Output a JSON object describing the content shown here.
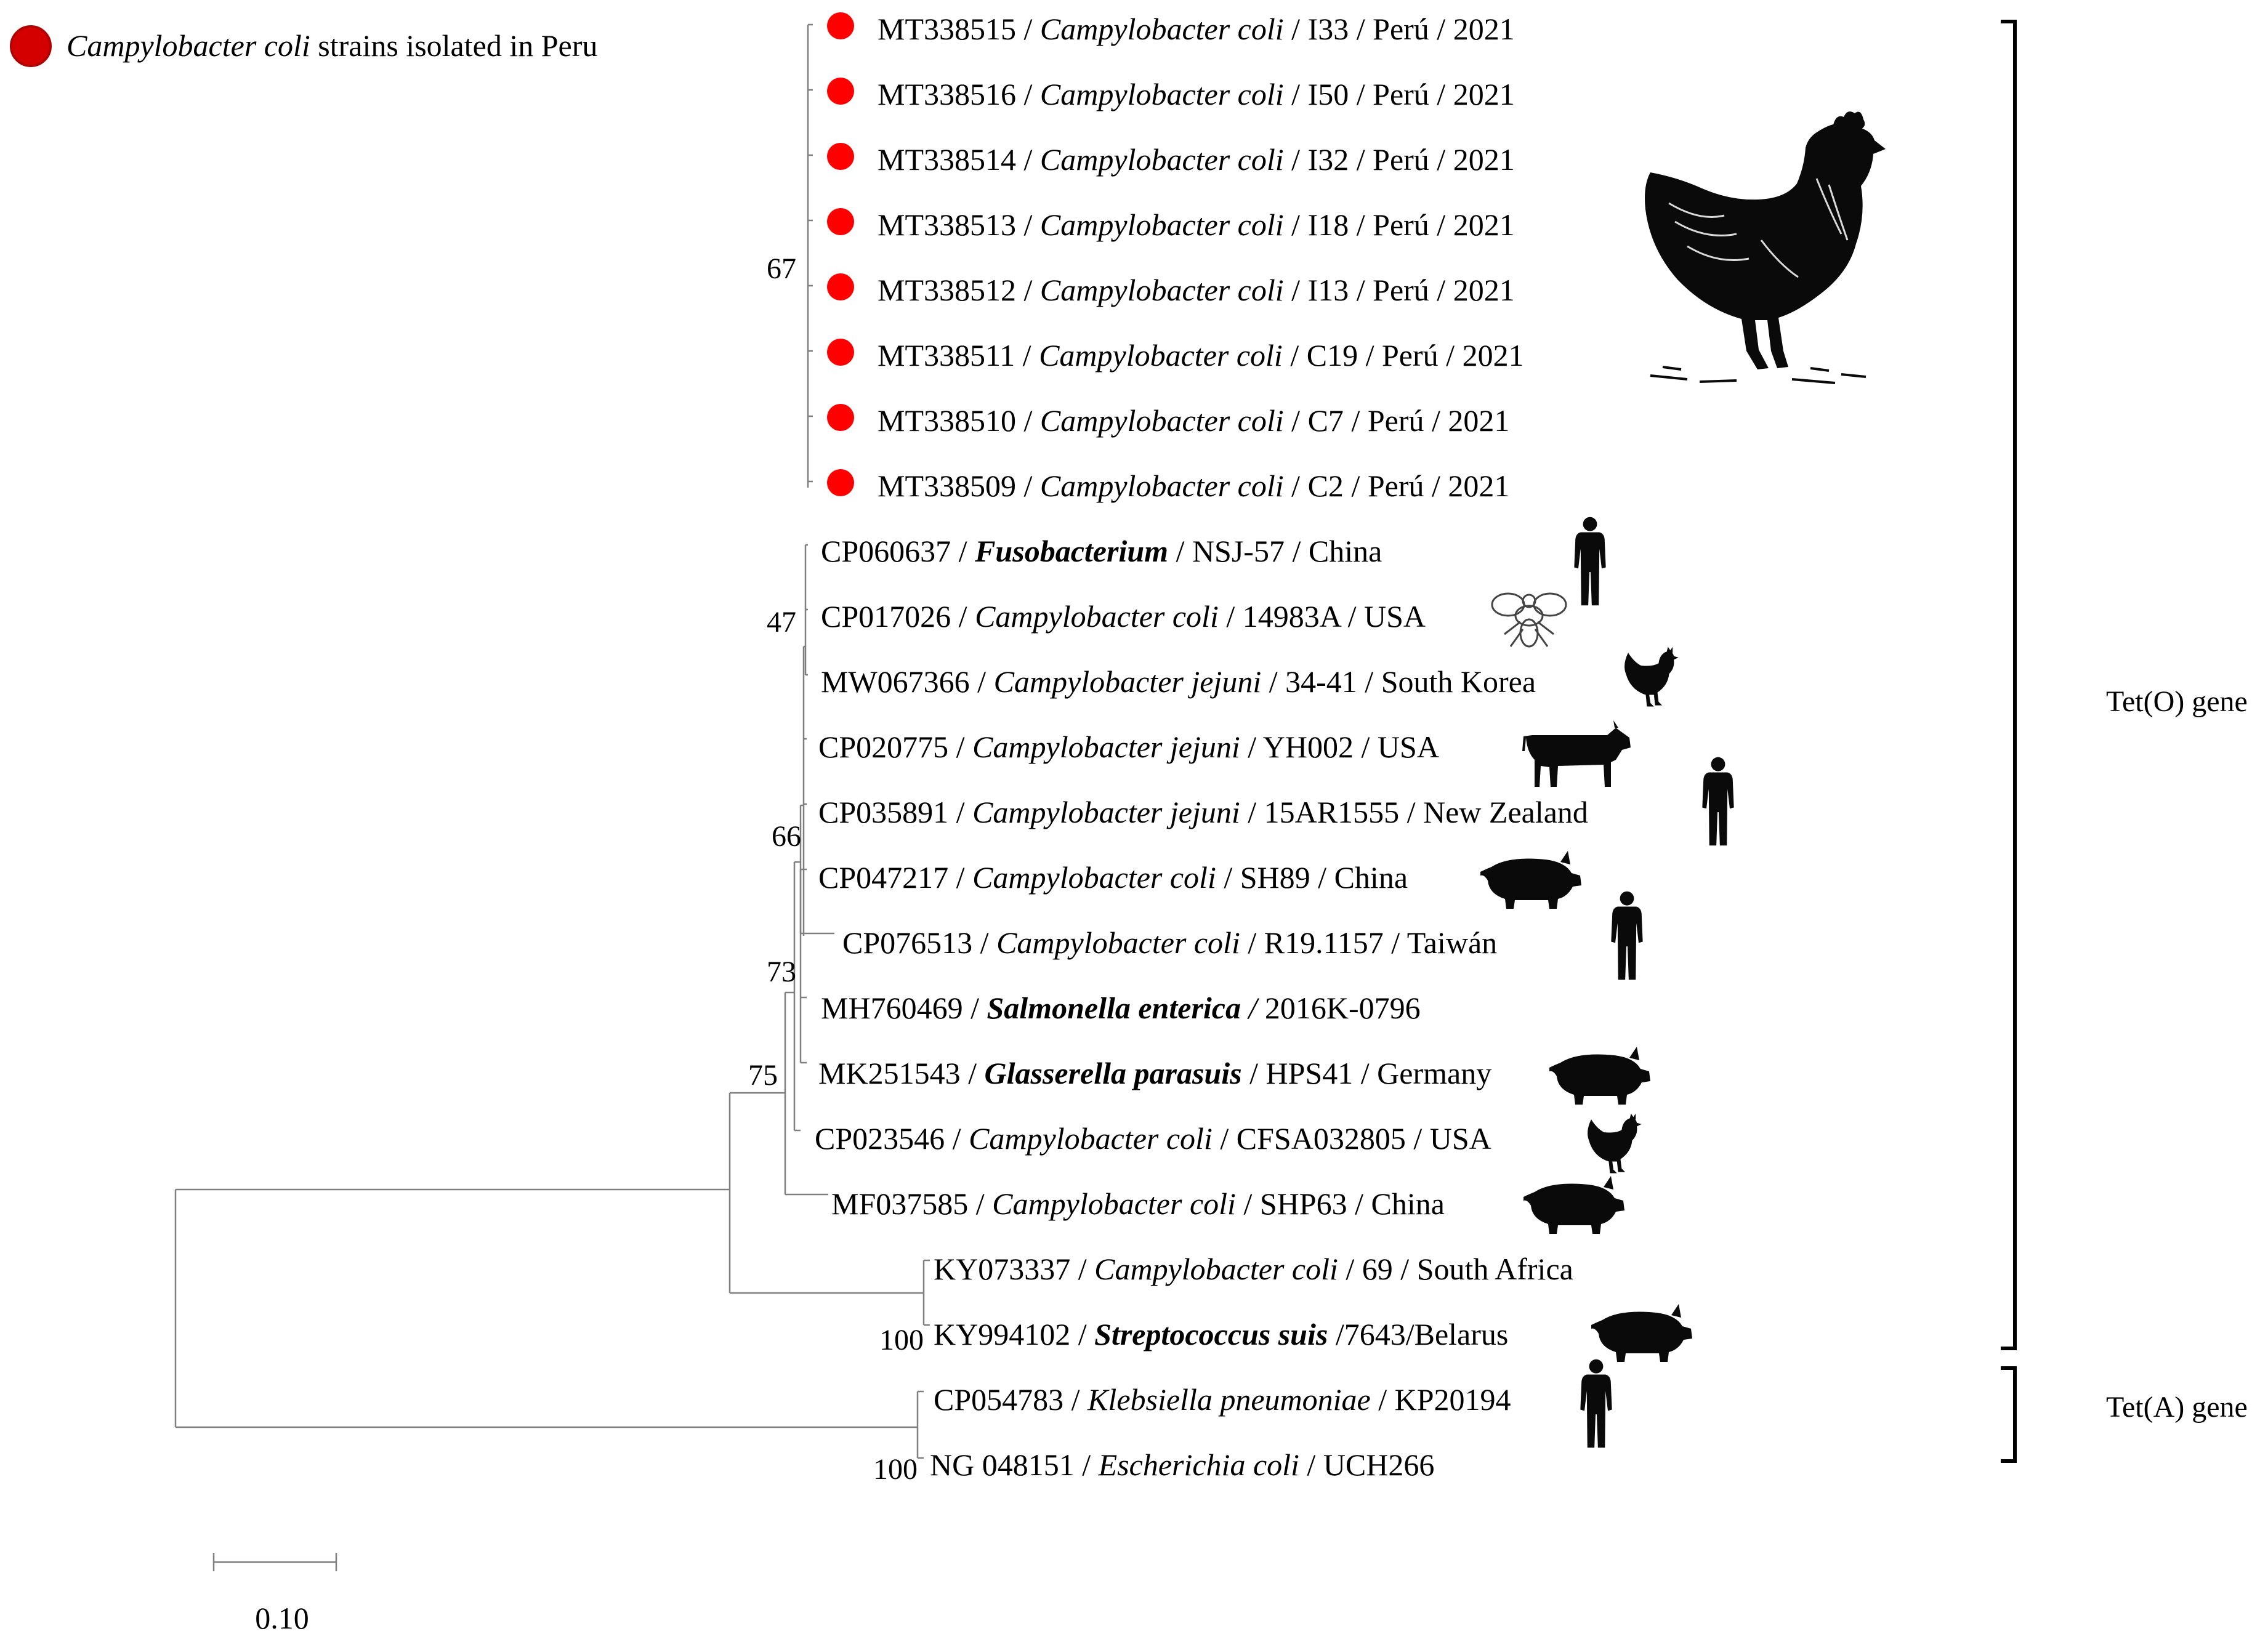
{
  "legend": {
    "label_italic": "Campylobacter coli",
    "label_rest": " strains isolated in Peru",
    "marker_color": "#d40000"
  },
  "colors": {
    "peru_marker": "#ff0000",
    "branch": "#7f7f7f",
    "bracket": "#000000"
  },
  "taxa": [
    {
      "acc": "MT338515",
      "genus_species": "Campylobacter coli",
      "strain": "I33",
      "country": "Perú",
      "year": "2021",
      "peru": true
    },
    {
      "acc": "MT338516",
      "genus_species": "Campylobacter coli",
      "strain": "I50",
      "country": "Perú",
      "year": "2021",
      "peru": true
    },
    {
      "acc": "MT338514",
      "genus_species": "Campylobacter coli",
      "strain": "I32",
      "country": "Perú",
      "year": "2021",
      "peru": true
    },
    {
      "acc": "MT338513",
      "genus_species": "Campylobacter coli",
      "strain": "I18",
      "country": "Perú",
      "year": "2021",
      "peru": true
    },
    {
      "acc": "MT338512",
      "genus_species": "Campylobacter coli",
      "strain": "I13",
      "country": "Perú",
      "year": "2021",
      "peru": true
    },
    {
      "acc": "MT338511",
      "genus_species": "Campylobacter coli",
      "strain": "C19",
      "country": "Perú",
      "year": "2021",
      "peru": true
    },
    {
      "acc": "MT338510",
      "genus_species": "Campylobacter coli",
      "strain": "C7",
      "country": "Perú",
      "year": "2021",
      "peru": true
    },
    {
      "acc": "MT338509",
      "genus_species": "Campylobacter coli",
      "strain": "C2",
      "country": "Perú",
      "year": "2021",
      "peru": true
    },
    {
      "acc": "CP060637",
      "genus_species": "Fusobacterium",
      "bold": true,
      "strain": "NSJ-57",
      "country": "China",
      "host": "human-icon"
    },
    {
      "acc": "CP017026",
      "genus_species": "Campylobacter coli",
      "strain": "14983A",
      "country": "USA",
      "host": "fly-icon"
    },
    {
      "acc": "MW067366",
      "genus_species": "Campylobacter jejuni",
      "strain": "34-41",
      "country": "South Korea",
      "host": "chicken-icon"
    },
    {
      "acc": "CP020775",
      "genus_species": "Campylobacter jejuni",
      "strain": "YH002",
      "country": "USA",
      "host": "cow-icon"
    },
    {
      "acc": "CP035891",
      "genus_species": "Campylobacter jejuni",
      "strain": "15AR1555",
      "country": "New Zealand",
      "host": "human-icon"
    },
    {
      "acc": "CP047217",
      "genus_species": "Campylobacter coli",
      "strain": "SH89",
      "country": "China",
      "host": "pig-icon"
    },
    {
      "acc": "CP076513",
      "genus_species": "Campylobacter coli",
      "strain": "R19.1157",
      "country": "Taiwán",
      "host": "human-icon"
    },
    {
      "acc": "MH760469",
      "genus_species": "Salmonella enterica",
      "bold": true,
      "strain": "2016K-0796",
      "italic_sep": true
    },
    {
      "acc": "MK251543",
      "genus_species": "Glasserella parasuis",
      "bold": true,
      "strain": "HPS41",
      "country": "Germany",
      "host": "pig-icon"
    },
    {
      "acc": "CP023546",
      "genus_species": "Campylobacter coli",
      "strain": "CFSA032805",
      "country": "USA",
      "host": "chicken-icon"
    },
    {
      "acc": "MF037585",
      "genus_species": "Campylobacter coli",
      "strain": "SHP63",
      "country": "China",
      "host": "pig-icon"
    },
    {
      "acc": "KY073337",
      "genus_species": "Campylobacter coli",
      "strain": "69",
      "country": "South Africa"
    },
    {
      "acc": "KY994102",
      "genus_species": "Streptococcus suis",
      "bold": true,
      "tail": " /7643/Belarus",
      "host": "pig-icon"
    },
    {
      "acc": "CP054783",
      "genus_species": "Klebsiella pneumoniae",
      "strain": "KP20194",
      "host": "human-icon"
    },
    {
      "acc": "NG 048151",
      "genus_species": "Escherichia coli",
      "strain": "UCH266"
    }
  ],
  "bootstrap": [
    "67",
    "47",
    "66",
    "73",
    "75",
    "100",
    "100"
  ],
  "gene_groups": [
    {
      "label": "Tet(O) gene"
    },
    {
      "label": "Tet(A) gene"
    }
  ],
  "scale_bar": {
    "label": "0.10"
  },
  "host_icons": [
    "chicken-icon",
    "human-icon",
    "fly-icon",
    "cow-icon",
    "pig-icon"
  ]
}
